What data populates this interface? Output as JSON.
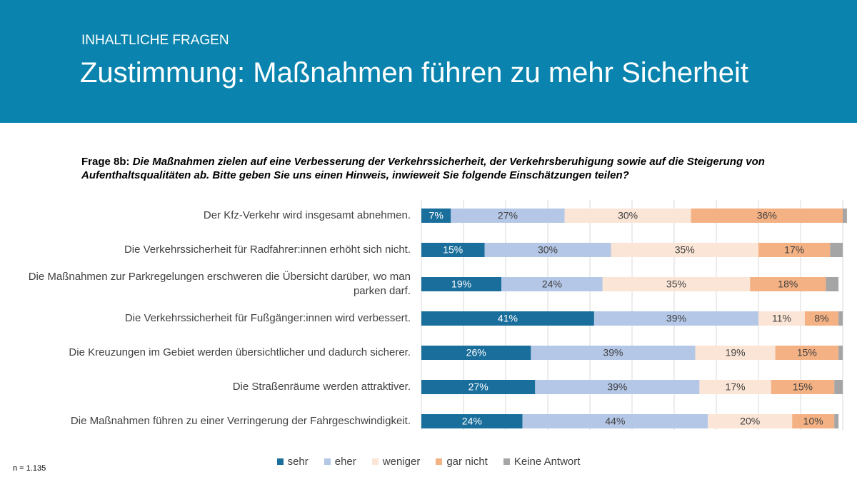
{
  "header": {
    "kicker": "INHALTLICHE FRAGEN",
    "title": "Zustimmung: Maßnahmen führen zu mehr Sicherheit"
  },
  "question": {
    "label": "Frage 8b:",
    "text": "Die Maßnahmen zielen auf eine Verbesserung der Verkehrssicherheit, der Verkehrsberuhigung sowie auf die Steigerung von Aufenthaltsqualitäten ab. Bitte geben Sie uns einen Hinweis, inwieweit Sie folgende Einschätzungen teilen?"
  },
  "chart_data": {
    "type": "stacked_bar_horizontal",
    "categories": [
      "Der Kfz-Verkehr wird insgesamt abnehmen.",
      "Die Verkehrssicherheit für Radfahrer:innen erhöht sich nicht.",
      "Die Maßnahmen zur Parkregelungen erschweren die Übersicht darüber, wo man parken darf.",
      "Die Verkehrssicherheit für Fußgänger:innen wird verbessert.",
      "Die Kreuzungen im Gebiet werden übersichtlicher und dadurch sicherer.",
      "Die Straßenräume werden attraktiver.",
      "Die Maßnahmen führen zu einer Verringerung der Fahrgeschwindigkeit."
    ],
    "series": [
      {
        "name": "sehr",
        "color": "#1a6e9c",
        "label_color": "#ffffff",
        "values": [
          7,
          15,
          19,
          41,
          26,
          27,
          24
        ],
        "value_labels": [
          "7%",
          "15%",
          "19%",
          "41%",
          "26%",
          "27%",
          "24%"
        ]
      },
      {
        "name": "eher",
        "color": "#b4c7e7",
        "label_color": "#404040",
        "values": [
          27,
          30,
          24,
          39,
          39,
          39,
          44
        ],
        "value_labels": [
          "27%",
          "30%",
          "24%",
          "39%",
          "39%",
          "39%",
          "44%"
        ]
      },
      {
        "name": "weniger",
        "color": "#fbe5d6",
        "label_color": "#404040",
        "values": [
          30,
          35,
          35,
          11,
          19,
          17,
          20
        ],
        "value_labels": [
          "30%",
          "35%",
          "35%",
          "11%",
          "19%",
          "17%",
          "20%"
        ]
      },
      {
        "name": "gar nicht",
        "color": "#f4b183",
        "label_color": "#404040",
        "values": [
          36,
          17,
          18,
          8,
          15,
          15,
          10
        ],
        "value_labels": [
          "36%",
          "17%",
          "18%",
          "8%",
          "15%",
          "15%",
          "10%"
        ]
      },
      {
        "name": "Keine Antwort",
        "color": "#a5a5a5",
        "values": [
          1,
          3,
          3,
          1,
          1,
          2,
          1
        ]
      }
    ],
    "xlim": [
      0,
      100
    ],
    "xticks": [
      0,
      10,
      20,
      30,
      40,
      50,
      60,
      70,
      80,
      90,
      100
    ],
    "grid": true
  },
  "footnote": "n = 1.135"
}
